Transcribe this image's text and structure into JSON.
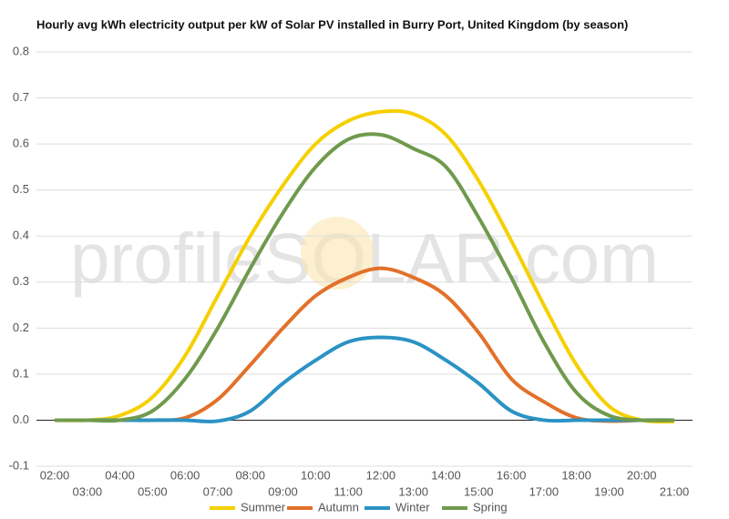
{
  "chart_data": {
    "type": "line",
    "title": "Hourly avg kWh electricity output per kW of Solar PV installed in Burry Port, United Kingdom (by season)",
    "watermark": "profileSOLAR.com",
    "categories": [
      "02:00",
      "03:00",
      "04:00",
      "05:00",
      "06:00",
      "07:00",
      "08:00",
      "09:00",
      "10:00",
      "11:00",
      "12:00",
      "13:00",
      "14:00",
      "15:00",
      "16:00",
      "17:00",
      "18:00",
      "19:00",
      "20:00",
      "21:00"
    ],
    "series": [
      {
        "name": "Summer",
        "color": "#f5d000",
        "values": [
          0,
          0,
          0.01,
          0.05,
          0.14,
          0.27,
          0.4,
          0.51,
          0.6,
          0.65,
          0.67,
          0.665,
          0.62,
          0.52,
          0.39,
          0.25,
          0.12,
          0.03,
          0,
          -0.003
        ]
      },
      {
        "name": "Autumn",
        "color": "#e2712a",
        "values": [
          0,
          0,
          0,
          0,
          0.005,
          0.045,
          0.12,
          0.2,
          0.27,
          0.31,
          0.33,
          0.31,
          0.27,
          0.19,
          0.09,
          0.04,
          0.005,
          -0.002,
          0,
          0
        ]
      },
      {
        "name": "Winter",
        "color": "#2b93c4",
        "values": [
          0,
          0,
          0,
          0,
          0,
          -0.002,
          0.02,
          0.08,
          0.13,
          0.17,
          0.18,
          0.17,
          0.13,
          0.08,
          0.02,
          0,
          0,
          0,
          0,
          0
        ]
      },
      {
        "name": "Spring",
        "color": "#6f9a4c",
        "values": [
          0,
          0,
          0,
          0.02,
          0.09,
          0.2,
          0.33,
          0.45,
          0.55,
          0.61,
          0.62,
          0.59,
          0.55,
          0.44,
          0.31,
          0.17,
          0.06,
          0.01,
          0,
          0
        ]
      }
    ],
    "ylim": [
      -0.1,
      0.8
    ],
    "yticks": [
      -0.1,
      {
        "value": 0,
        "label": "0.0"
      },
      0.1,
      0.2,
      0.3,
      0.4,
      0.5,
      0.6,
      0.7,
      0.8
    ],
    "grid": true
  }
}
